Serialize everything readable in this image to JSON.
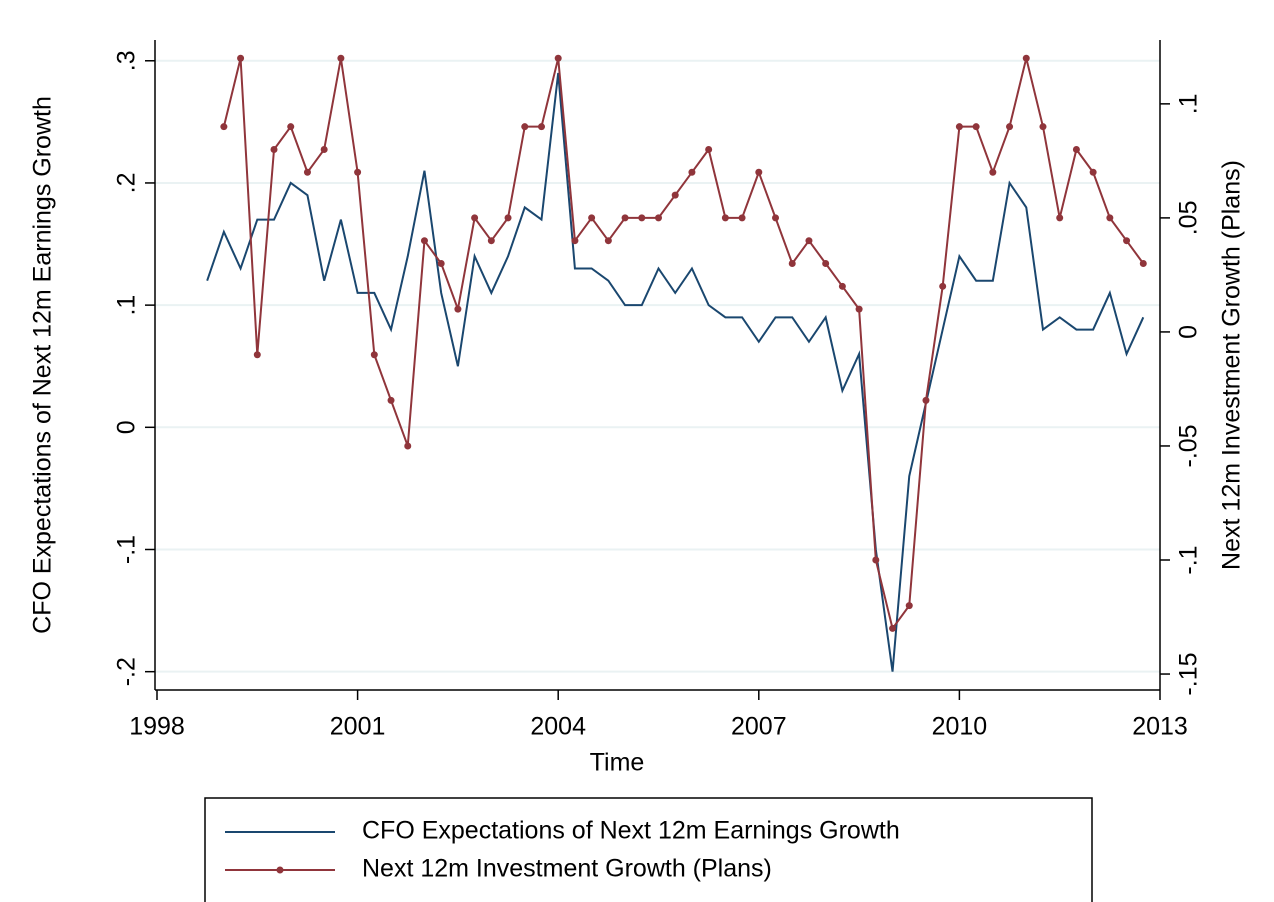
{
  "chart_data": {
    "type": "line",
    "x_label": "Time",
    "y_label": "CFO Expectations of Next 12m Earnings Growth",
    "y2_label": "Next 12m Investment Growth (Plans)",
    "x": [
      1998.75,
      1999,
      1999.25,
      1999.5,
      1999.75,
      2000,
      2000.25,
      2000.5,
      2000.75,
      2001,
      2001.25,
      2001.5,
      2001.75,
      2002,
      2002.25,
      2002.5,
      2002.75,
      2003,
      2003.25,
      2003.5,
      2003.75,
      2004,
      2004.25,
      2004.5,
      2004.75,
      2005,
      2005.25,
      2005.5,
      2005.75,
      2006,
      2006.25,
      2006.5,
      2006.75,
      2007,
      2007.25,
      2007.5,
      2007.75,
      2008,
      2008.25,
      2008.5,
      2008.75,
      2009,
      2009.25,
      2009.5,
      2009.75,
      2010,
      2010.25,
      2010.5,
      2010.75,
      2011,
      2011.25,
      2011.5,
      2011.75,
      2012,
      2012.25,
      2012.5,
      2012.75
    ],
    "series": [
      {
        "name": "CFO Expectations of Next 12m Earnings Growth",
        "color": "#1a476f",
        "axis": "y",
        "markers": false,
        "values": [
          0.12,
          0.16,
          0.13,
          0.17,
          0.17,
          0.2,
          0.19,
          0.12,
          0.17,
          0.11,
          0.11,
          0.08,
          0.14,
          0.21,
          0.11,
          0.05,
          0.14,
          0.11,
          0.14,
          0.18,
          0.17,
          0.29,
          0.13,
          0.13,
          0.12,
          0.1,
          0.1,
          0.13,
          0.11,
          0.13,
          0.1,
          0.09,
          0.09,
          0.07,
          0.09,
          0.09,
          0.07,
          0.09,
          0.03,
          0.06,
          -0.1,
          -0.2,
          -0.04,
          0.02,
          0.08,
          0.14,
          0.12,
          0.12,
          0.2,
          0.18,
          0.08,
          0.09,
          0.08,
          0.08,
          0.11,
          0.06,
          0.09
        ]
      },
      {
        "name": "Next 12m Investment Growth (Plans)",
        "color": "#90353b",
        "axis": "y2",
        "markers": true,
        "values": [
          null,
          0.09,
          0.12,
          -0.01,
          0.08,
          0.09,
          0.07,
          0.08,
          0.12,
          0.07,
          -0.01,
          -0.03,
          -0.05,
          0.04,
          0.03,
          0.01,
          0.05,
          0.04,
          0.05,
          0.09,
          0.09,
          0.12,
          0.04,
          0.05,
          0.04,
          0.05,
          0.05,
          0.05,
          0.06,
          0.07,
          0.08,
          0.05,
          0.05,
          0.07,
          0.05,
          0.03,
          0.04,
          0.03,
          0.02,
          0.01,
          -0.1,
          -0.13,
          -0.12,
          -0.03,
          0.02,
          0.09,
          0.09,
          0.07,
          0.09,
          0.12,
          0.09,
          0.05,
          0.08,
          0.07,
          0.05,
          0.04,
          0.03
        ]
      }
    ],
    "xlim": [
      1998,
      2013
    ],
    "xticks": [
      1998,
      2001,
      2004,
      2007,
      2010,
      2013
    ],
    "ylim": [
      -0.215,
      0.317
    ],
    "yticks": [
      {
        "value": -0.2,
        "label": "-.2"
      },
      {
        "value": -0.1,
        "label": "-.1"
      },
      0,
      {
        "value": 0.1,
        "label": ".1"
      },
      {
        "value": 0.2,
        "label": ".2"
      },
      {
        "value": 0.3,
        "label": ".3"
      }
    ],
    "y2lim": [
      -0.157,
      0.128
    ],
    "y2ticks": [
      {
        "value": -0.15,
        "label": "-.15"
      },
      {
        "value": -0.1,
        "label": "-.1"
      },
      {
        "value": -0.05,
        "label": "-.05"
      },
      0,
      {
        "value": 0.05,
        "label": ".05"
      },
      {
        "value": 0.1,
        "label": ".1"
      }
    ],
    "grid": true,
    "legend": "bottom"
  }
}
